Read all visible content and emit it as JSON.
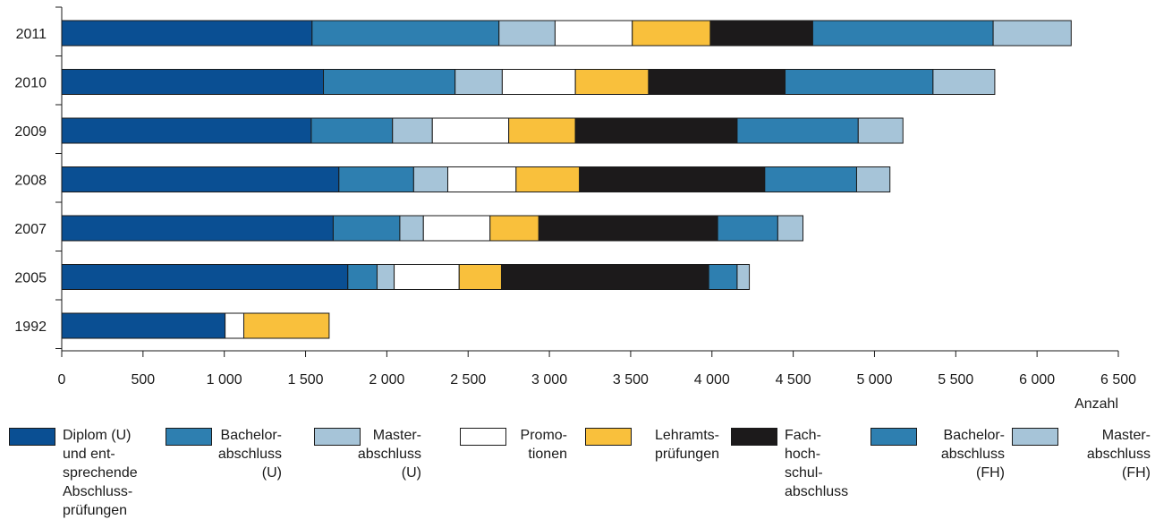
{
  "chart_data": {
    "type": "bar",
    "orientation": "horizontal",
    "stacked": true,
    "categories": [
      "2011",
      "2010",
      "2009",
      "2008",
      "2007",
      "2005",
      "1992"
    ],
    "series": [
      {
        "name": "Diplom (U)\nund ent-\nsprechende\nAbschluss-\nprüfungen",
        "color": "#0a4f93",
        "values": [
          1540,
          1610,
          1535,
          1705,
          1670,
          1760,
          1005
        ]
      },
      {
        "name": "Bachelor-\nabschluss\n(U)",
        "color": "#2e7fb0",
        "values": [
          1150,
          810,
          500,
          460,
          410,
          180,
          0
        ]
      },
      {
        "name": "Master-\nabschluss\n(U)",
        "color": "#a6c4d8",
        "values": [
          345,
          290,
          245,
          210,
          145,
          105,
          0
        ]
      },
      {
        "name": "Promo-\ntionen",
        "color": "#ffffff",
        "values": [
          475,
          450,
          470,
          420,
          410,
          400,
          115
        ]
      },
      {
        "name": "Lehramts-\nprüfungen",
        "color": "#f9c03c",
        "values": [
          480,
          450,
          410,
          390,
          300,
          260,
          525
        ]
      },
      {
        "name": "Fach-\nhoch-\nschul-\nabschluss",
        "color": "#1c1a1b",
        "values": [
          630,
          840,
          995,
          1140,
          1100,
          1275,
          0
        ]
      },
      {
        "name": "Bachelor-\nabschluss\n(FH)",
        "color": "#2e7fb0",
        "values": [
          1110,
          910,
          745,
          565,
          370,
          175,
          0
        ]
      },
      {
        "name": "Master-\nabschluss\n(FH)",
        "color": "#a6c4d8",
        "values": [
          480,
          380,
          275,
          205,
          155,
          75,
          0
        ]
      }
    ],
    "xlim": [
      0,
      6500
    ],
    "xticks": [
      0,
      500,
      1000,
      1500,
      2000,
      2500,
      3000,
      3500,
      4000,
      4500,
      5000,
      5500,
      6000,
      6500
    ],
    "xtick_labels": [
      "0",
      "500",
      "1 000",
      "1 500",
      "2 000",
      "2 500",
      "3 000",
      "3 500",
      "4 000",
      "4 500",
      "5 000",
      "5 500",
      "6 000",
      "6 500"
    ],
    "xlabel": "Anzahl",
    "ylabel": "",
    "title": "",
    "grid": false,
    "legend_position": "bottom"
  }
}
